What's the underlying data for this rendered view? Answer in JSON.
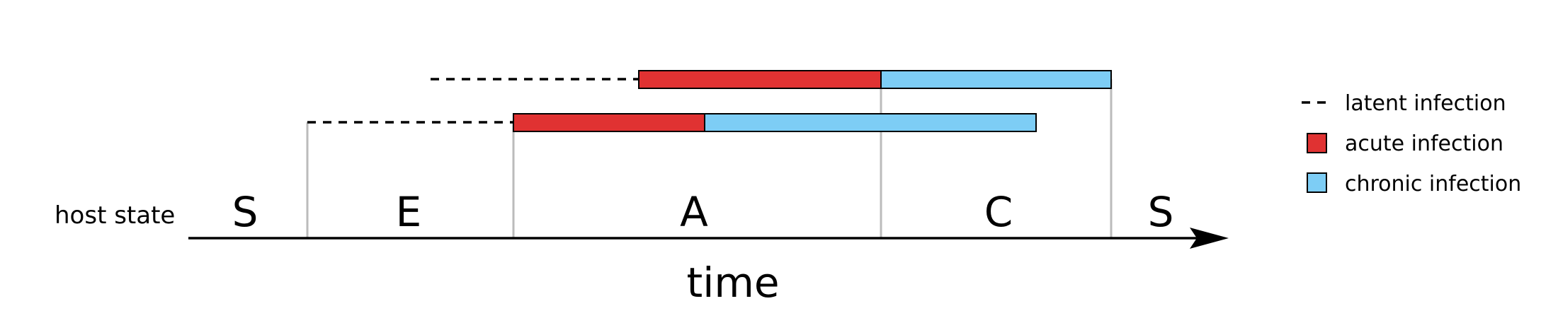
{
  "axis": {
    "row_label": "host state",
    "time_label": "time"
  },
  "states": [
    "S",
    "E",
    "A",
    "C",
    "S"
  ],
  "legend": {
    "latent": "latent infection",
    "acute": "acute infection",
    "chronic": "chronic infection"
  },
  "colors": {
    "acute": "#e03232",
    "chronic": "#7dcdf5",
    "latent": "#000000",
    "divider": "#bbbbbb",
    "axis": "#000000"
  }
}
